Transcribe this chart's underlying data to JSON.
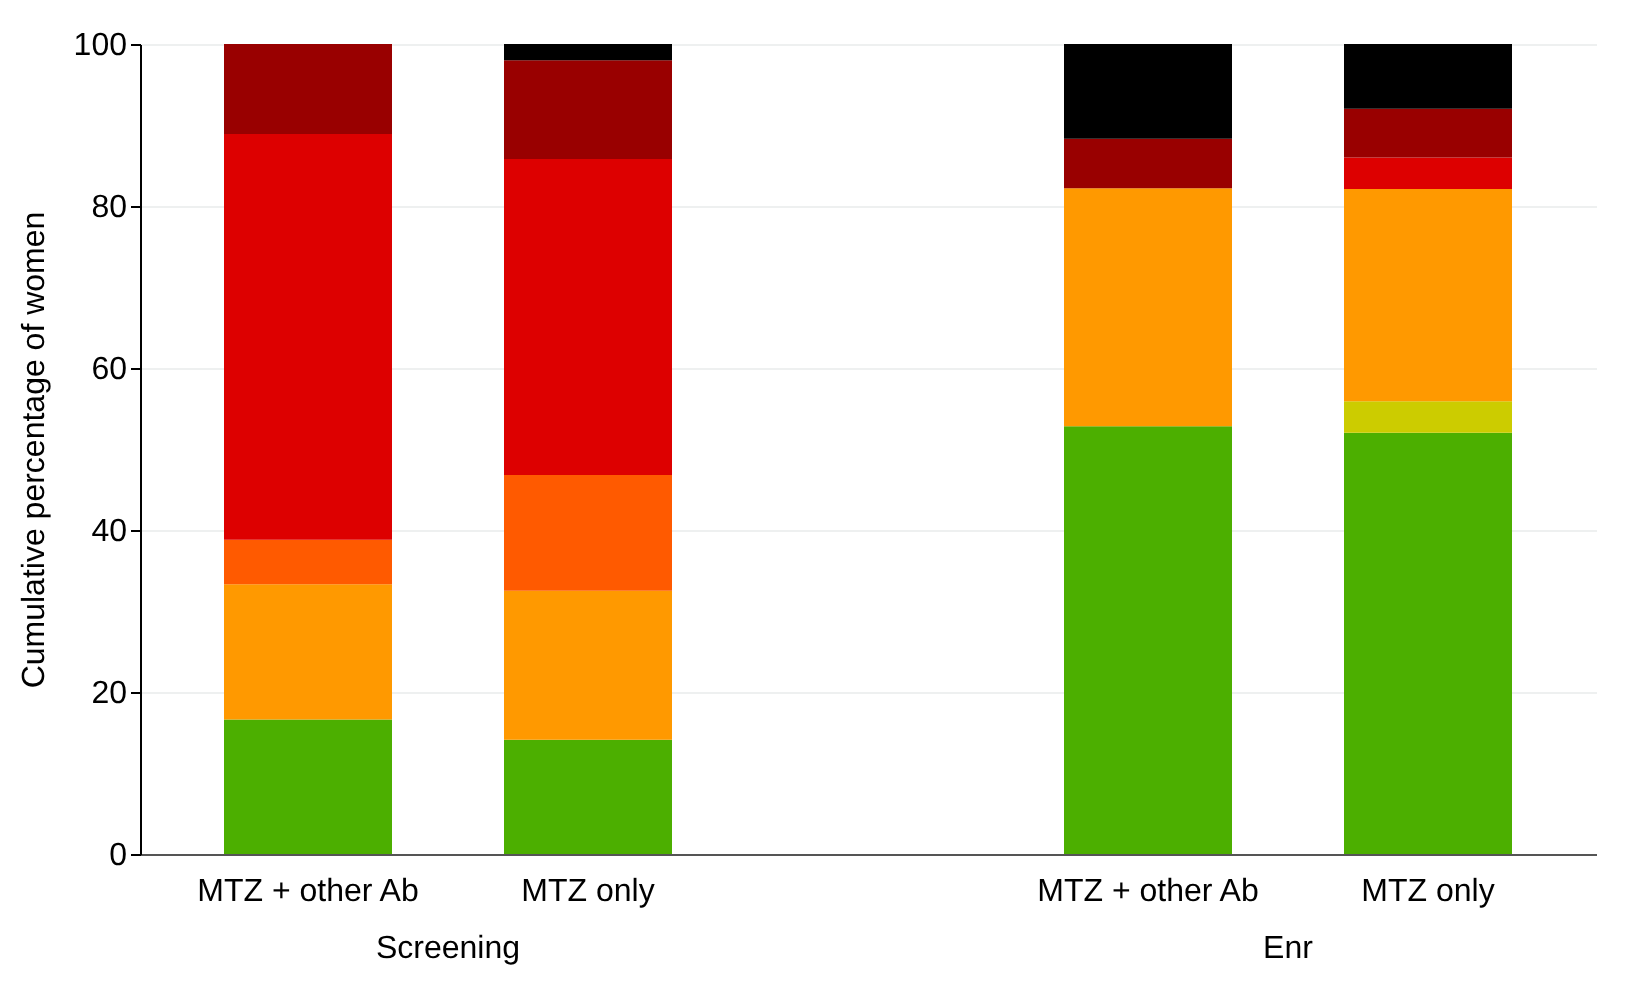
{
  "chart_data": {
    "type": "bar",
    "stacked": true,
    "ylabel": "Cumulative percentage of women",
    "categories": [
      "MTZ + other Ab",
      "MTZ only",
      null,
      "MTZ + other Ab",
      "MTZ only"
    ],
    "series": [
      {
        "color": "#4caf00",
        "values": [
          16.6,
          14.1,
          null,
          52.8,
          52
        ]
      },
      {
        "color": "#cccc00",
        "values": [
          null,
          null,
          null,
          null,
          3.9
        ]
      },
      {
        "color": "#ff9900",
        "values": [
          16.7,
          18.4,
          null,
          29.4,
          26.2
        ]
      },
      {
        "color": "#ff5a00",
        "values": [
          5.5,
          14.3,
          null,
          null,
          null
        ]
      },
      {
        "color": "#dd0000",
        "values": [
          50.1,
          39,
          null,
          null,
          3.9
        ]
      },
      {
        "color": "#990000",
        "values": [
          11.1,
          12.2,
          null,
          6.1,
          6
        ]
      },
      {
        "color": "#000000",
        "values": [
          null,
          2,
          null,
          11.7,
          8
        ]
      }
    ],
    "ylim": [
      0,
      100
    ],
    "yticks": [
      0,
      20,
      40,
      60,
      80,
      100
    ],
    "grid": "y",
    "annotations": [
      "Screening",
      "Enr"
    ]
  }
}
